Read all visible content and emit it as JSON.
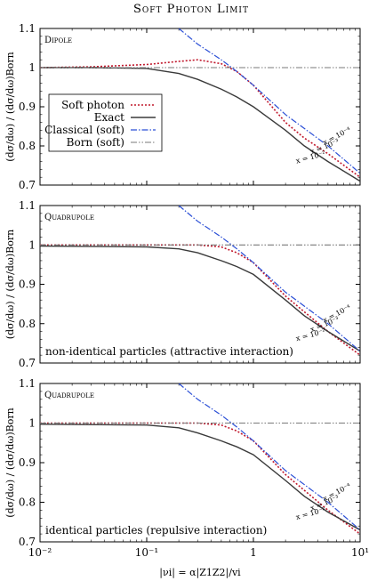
{
  "figure_title": "Soft Photon Limit",
  "chart_data": [
    {
      "type": "line",
      "panel_label": "Dipole",
      "note": "",
      "xlabel": "|νi| = α|Z1Z2|/vi",
      "ylabel": "(dσ/dω) / (dσ/dω)Born",
      "xscale": "log",
      "xlim": [
        0.01,
        10
      ],
      "ylim": [
        0.7,
        1.1
      ],
      "yticks": [
        0.7,
        0.8,
        0.9,
        1,
        1.1
      ],
      "legend": {
        "placement": "left",
        "entries": [
          {
            "label": "Soft photon",
            "style": "dotted",
            "color": "#c0182c"
          },
          {
            "label": "Exact",
            "style": "solid",
            "color": "#3a3a3a"
          },
          {
            "label": "Classical (soft)",
            "style": "dashdot",
            "color": "#2b4fd6"
          },
          {
            "label": "Born (soft)",
            "style": "dashdotdot",
            "color": "#7a7a7a"
          }
        ]
      },
      "curve_labels": [
        "x = 10⁻⁴",
        "x = 10⁻³",
        "x = 10⁻²"
      ],
      "series": [
        {
          "name": "Soft photon",
          "x": [
            0.01,
            0.03,
            0.1,
            0.2,
            0.3,
            0.5,
            0.7,
            1,
            2,
            3,
            5,
            10
          ],
          "values": [
            1.0,
            1.002,
            1.008,
            1.016,
            1.02,
            1.01,
            0.99,
            0.955,
            0.86,
            0.82,
            0.78,
            0.72
          ]
        },
        {
          "name": "Exact",
          "x": [
            0.01,
            0.03,
            0.1,
            0.2,
            0.3,
            0.5,
            0.7,
            1,
            2,
            3,
            5,
            10
          ],
          "values": [
            1.0,
            1.0,
            0.998,
            0.985,
            0.97,
            0.945,
            0.925,
            0.9,
            0.84,
            0.8,
            0.76,
            0.71
          ]
        },
        {
          "name": "Classical (soft)",
          "x": [
            0.2,
            0.3,
            0.5,
            0.7,
            1,
            2,
            5,
            10
          ],
          "values": [
            1.1,
            1.06,
            1.02,
            0.99,
            0.955,
            0.88,
            0.8,
            0.73
          ]
        },
        {
          "name": "Born (soft)",
          "x": [
            0.01,
            10
          ],
          "values": [
            1.0,
            1.0
          ]
        }
      ]
    },
    {
      "type": "line",
      "panel_label": "Quadrupole",
      "note": "non-identical particles (attractive interaction)",
      "xlabel": "|νi| = α|Z1Z2|/vi",
      "ylabel": "(dσ/dω) / (dσ/dω)Born",
      "xscale": "log",
      "xlim": [
        0.01,
        10
      ],
      "ylim": [
        0.7,
        1.1
      ],
      "yticks": [
        0.7,
        0.8,
        0.9,
        1,
        1.1
      ],
      "curve_labels": [
        "x = 10⁻⁴",
        "x = 10⁻³",
        "x = 10⁻²"
      ],
      "series": [
        {
          "name": "Soft photon",
          "x": [
            0.01,
            0.1,
            0.3,
            0.5,
            0.7,
            1,
            2,
            3,
            5,
            10
          ],
          "values": [
            1.0,
            1.0,
            1.0,
            0.995,
            0.98,
            0.955,
            0.87,
            0.83,
            0.78,
            0.72
          ]
        },
        {
          "name": "Exact",
          "x": [
            0.01,
            0.1,
            0.2,
            0.3,
            0.5,
            0.7,
            1,
            2,
            3,
            5,
            10
          ],
          "values": [
            0.997,
            0.995,
            0.99,
            0.98,
            0.96,
            0.945,
            0.925,
            0.86,
            0.82,
            0.78,
            0.73
          ]
        },
        {
          "name": "Classical (soft)",
          "x": [
            0.2,
            0.3,
            0.5,
            0.7,
            1,
            2,
            5,
            10
          ],
          "values": [
            1.1,
            1.06,
            1.02,
            0.99,
            0.955,
            0.88,
            0.8,
            0.73
          ]
        },
        {
          "name": "Born (soft)",
          "x": [
            0.01,
            10
          ],
          "values": [
            1.0,
            1.0
          ]
        }
      ]
    },
    {
      "type": "line",
      "panel_label": "Quadrupole",
      "note": "identical particles (repulsive interaction)",
      "xlabel": "|νi| = α|Z1Z2|/vi",
      "ylabel": "(dσ/dω) / (dσ/dω)Born",
      "xscale": "log",
      "xlim": [
        0.01,
        10
      ],
      "ylim": [
        0.7,
        1.1
      ],
      "yticks": [
        0.7,
        0.8,
        0.9,
        1,
        1.1
      ],
      "xticks": [
        "10⁻²",
        "10⁻¹",
        "1",
        "10¹"
      ],
      "curve_labels": [
        "x = 10⁻⁴",
        "x = 10⁻³",
        "x = 10⁻²"
      ],
      "series": [
        {
          "name": "Soft photon",
          "x": [
            0.01,
            0.1,
            0.3,
            0.5,
            0.7,
            1,
            2,
            3,
            5,
            10
          ],
          "values": [
            1.0,
            1.0,
            1.0,
            0.995,
            0.98,
            0.955,
            0.87,
            0.83,
            0.78,
            0.72
          ]
        },
        {
          "name": "Exact",
          "x": [
            0.01,
            0.1,
            0.2,
            0.3,
            0.5,
            0.7,
            1,
            2,
            3,
            5,
            10
          ],
          "values": [
            0.997,
            0.995,
            0.988,
            0.975,
            0.955,
            0.94,
            0.92,
            0.855,
            0.815,
            0.775,
            0.73
          ]
        },
        {
          "name": "Classical (soft)",
          "x": [
            0.2,
            0.3,
            0.5,
            0.7,
            1,
            2,
            5,
            10
          ],
          "values": [
            1.1,
            1.06,
            1.02,
            0.99,
            0.955,
            0.88,
            0.8,
            0.73
          ]
        },
        {
          "name": "Born (soft)",
          "x": [
            0.01,
            10
          ],
          "values": [
            1.0,
            1.0
          ]
        }
      ]
    }
  ]
}
